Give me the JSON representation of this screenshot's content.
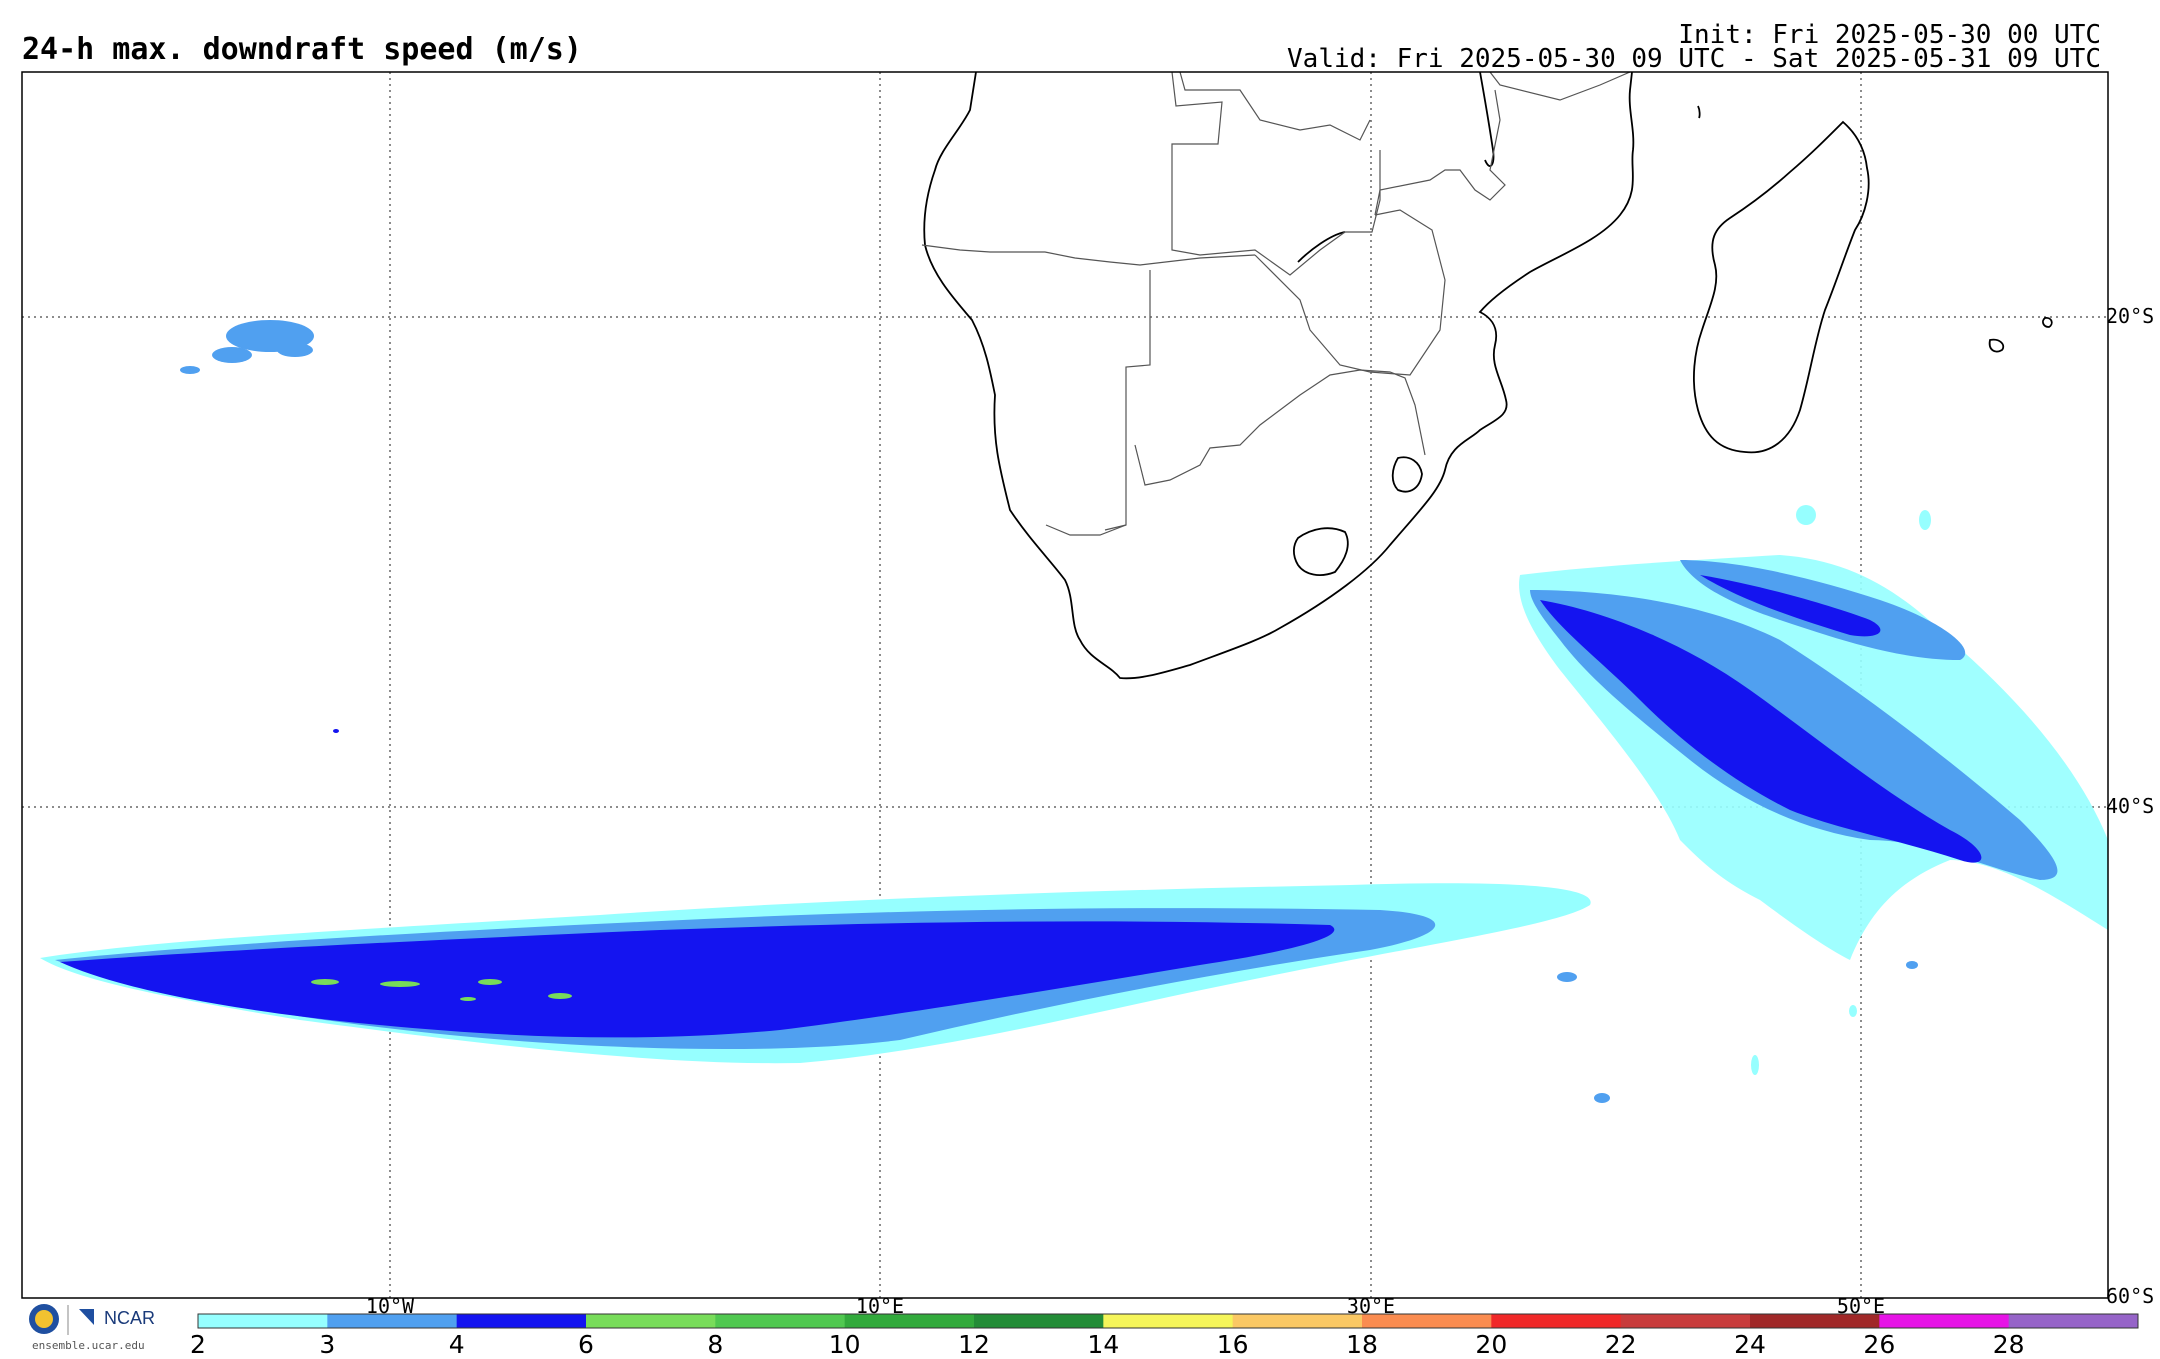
{
  "header": {
    "title": "24-h max. downdraft speed (m/s)",
    "init": "Init: Fri 2025-05-30 00 UTC",
    "valid": "Valid: Fri 2025-05-30 09 UTC - Sat 2025-05-31 09 UTC"
  },
  "map": {
    "lat_labels": [
      "20°S",
      "40°S",
      "60°S"
    ],
    "lon_labels": [
      "10°W",
      "10°E",
      "30°E",
      "50°E"
    ],
    "land_line_color": "#000000",
    "border_color": "#555555",
    "grid_style": "dotted"
  },
  "colorbar": {
    "levels": [
      "2",
      "3",
      "4",
      "6",
      "8",
      "10",
      "12",
      "14",
      "16",
      "18",
      "20",
      "22",
      "24",
      "26",
      "28"
    ],
    "colors": [
      "#96ffff",
      "#50a0f0",
      "#1414f0",
      "#78dc5a",
      "#50c850",
      "#32aa3c",
      "#238c37",
      "#f5f55a",
      "#fac864",
      "#fa8c50",
      "#f02828",
      "#c83c3c",
      "#a02828",
      "#e614e6",
      "#9664c8"
    ]
  },
  "branding": {
    "logo_text": "NCAR",
    "url": "ensemble.ucar.edu"
  }
}
